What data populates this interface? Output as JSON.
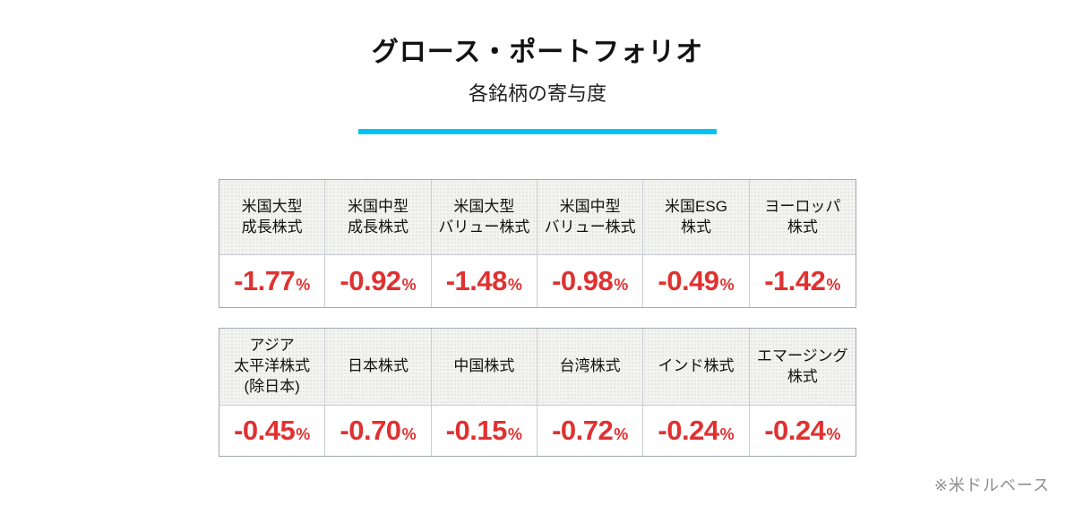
{
  "page": {
    "title": "グロース・ポートフォリオ",
    "subtitle": "各銘柄の寄与度",
    "footnote": "※米ドルベース"
  },
  "colors": {
    "accent_line": "#00c3f2",
    "value_negative": "#e03131",
    "header_bg": "#f3f3f1",
    "table_border": "#a2a8b1"
  },
  "chart_data": {
    "type": "table",
    "title": "グロース・ポートフォリオ",
    "subtitle": "各銘柄の寄与度",
    "unit": "%",
    "footnote": "※米ドルベース",
    "tables": [
      {
        "columns": [
          {
            "category": "米国大型成長株式",
            "label": "米国大型\n成長株式",
            "value": -1.77,
            "display": "-1.77"
          },
          {
            "category": "米国中型成長株式",
            "label": "米国中型\n成長株式",
            "value": -0.92,
            "display": "-0.92"
          },
          {
            "category": "米国大型バリュー株式",
            "label": "米国大型\nバリュー株式",
            "value": -1.48,
            "display": "-1.48"
          },
          {
            "category": "米国中型バリュー株式",
            "label": "米国中型\nバリュー株式",
            "value": -0.98,
            "display": "-0.98"
          },
          {
            "category": "米国ESG株式",
            "label": "米国ESG\n株式",
            "value": -0.49,
            "display": "-0.49"
          },
          {
            "category": "ヨーロッパ株式",
            "label": "ヨーロッパ\n株式",
            "value": -1.42,
            "display": "-1.42"
          }
        ]
      },
      {
        "columns": [
          {
            "category": "アジア太平洋株式(除日本)",
            "label": "アジア\n太平洋株式\n(除日本)",
            "value": -0.45,
            "display": "-0.45"
          },
          {
            "category": "日本株式",
            "label": "日本株式",
            "value": -0.7,
            "display": "-0.70"
          },
          {
            "category": "中国株式",
            "label": "中国株式",
            "value": -0.15,
            "display": "-0.15"
          },
          {
            "category": "台湾株式",
            "label": "台湾株式",
            "value": -0.72,
            "display": "-0.72"
          },
          {
            "category": "インド株式",
            "label": "インド株式",
            "value": -0.24,
            "display": "-0.24"
          },
          {
            "category": "エマージング株式",
            "label": "エマージング\n株式",
            "value": -0.24,
            "display": "-0.24"
          }
        ]
      }
    ]
  }
}
